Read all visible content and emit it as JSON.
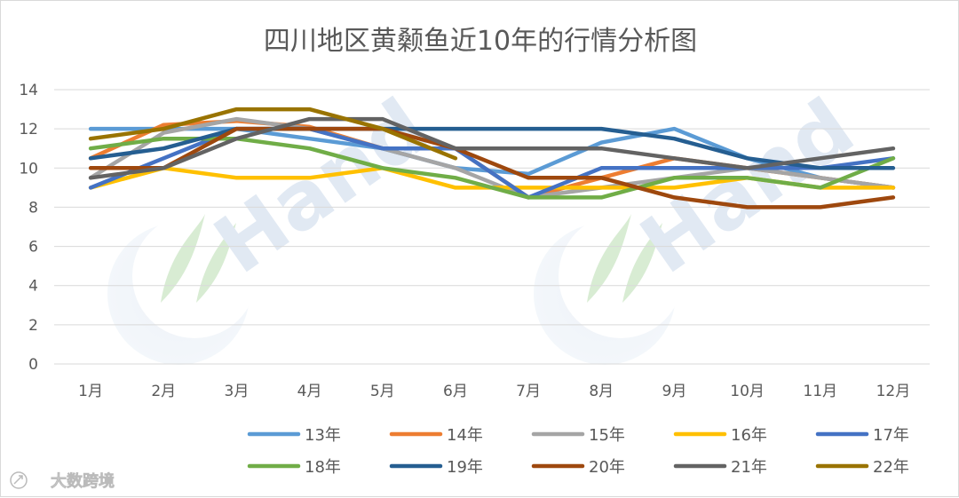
{
  "chart_data": {
    "type": "line",
    "title": "四川地区黄颡鱼近10年的行情分析图",
    "xlabel": "",
    "ylabel": "",
    "categories": [
      "1月",
      "2月",
      "3月",
      "4月",
      "5月",
      "6月",
      "7月",
      "8月",
      "9月",
      "10月",
      "11月",
      "12月"
    ],
    "ylim": [
      0,
      14
    ],
    "yticks": [
      0,
      2,
      4,
      6,
      8,
      10,
      12,
      14
    ],
    "grid": true,
    "legend_position": "bottom",
    "series": [
      {
        "name": "13年",
        "color": "#5b9bd5",
        "values": [
          12,
          12,
          12,
          11.5,
          11,
          10,
          9.7,
          11.3,
          12,
          10.5,
          9.5,
          9
        ]
      },
      {
        "name": "14年",
        "color": "#ed7d31",
        "values": [
          10.5,
          12.2,
          12.4,
          12.1,
          11,
          11,
          8.5,
          9.5,
          10.5,
          10,
          9.5,
          9
        ]
      },
      {
        "name": "15年",
        "color": "#a5a5a5",
        "values": [
          9.5,
          11.8,
          12.5,
          12,
          11,
          10,
          8.5,
          9,
          9.5,
          10,
          9.5,
          9
        ]
      },
      {
        "name": "16年",
        "color": "#ffc000",
        "values": [
          9,
          10,
          9.5,
          9.5,
          10,
          9,
          9,
          9,
          9,
          9.5,
          9,
          9
        ]
      },
      {
        "name": "17年",
        "color": "#4472c4",
        "values": [
          9,
          10.5,
          12,
          12,
          11,
          11,
          8.5,
          10,
          10,
          10,
          10,
          10.5
        ]
      },
      {
        "name": "18年",
        "color": "#70ad47",
        "values": [
          11,
          11.5,
          11.5,
          11,
          10,
          9.5,
          8.5,
          8.5,
          9.5,
          9.5,
          9,
          10.5
        ]
      },
      {
        "name": "19年",
        "color": "#255e91",
        "values": [
          10.5,
          11,
          12,
          12,
          12,
          12,
          12,
          12,
          11.5,
          10.5,
          10,
          10
        ]
      },
      {
        "name": "20年",
        "color": "#9e480e",
        "values": [
          10,
          10,
          12,
          12,
          12,
          11,
          9.5,
          9.5,
          8.5,
          8,
          8,
          8.5
        ]
      },
      {
        "name": "21年",
        "color": "#636363",
        "values": [
          9.5,
          10,
          11.5,
          12.5,
          12.5,
          11,
          11,
          11,
          10.5,
          10,
          10.5,
          11
        ]
      },
      {
        "name": "22年",
        "color": "#997300",
        "values": [
          11.5,
          12,
          13,
          13,
          12,
          10.5,
          null,
          null,
          null,
          null,
          null,
          null
        ]
      }
    ]
  },
  "watermark": {
    "logo_text": "Hand",
    "logo_color": "#c9d8ea",
    "leaf_color": "#b9dcb0"
  },
  "stamp": {
    "text": "大数跨境",
    "icon": "rocket-icon"
  }
}
